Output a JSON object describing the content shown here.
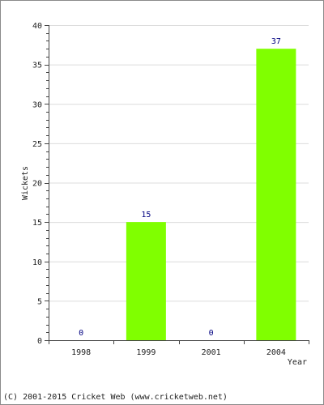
{
  "chart_data": {
    "type": "bar",
    "categories": [
      "1998",
      "1999",
      "2001",
      "2004"
    ],
    "values": [
      0,
      15,
      0,
      37
    ],
    "data_labels": [
      "0",
      "15",
      "0",
      "37"
    ],
    "xlabel": "Year",
    "ylabel": "Wickets",
    "ylim": [
      0,
      40
    ],
    "yticks": [
      0,
      5,
      10,
      15,
      20,
      25,
      30,
      35,
      40
    ],
    "grid": true,
    "bar_color": "#80ff00",
    "label_color": "#000080"
  },
  "footer": {
    "copyright": "(C) 2001-2015 Cricket Web (www.cricketweb.net)"
  }
}
